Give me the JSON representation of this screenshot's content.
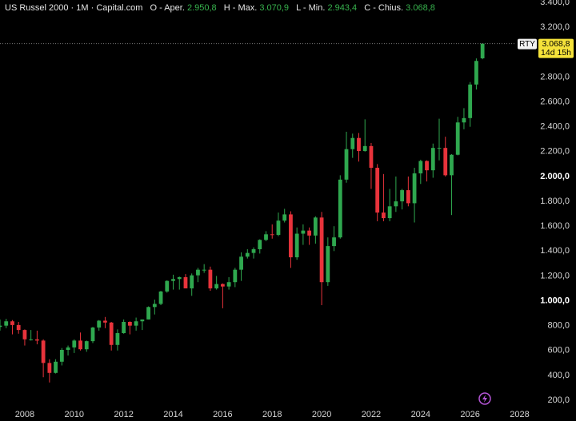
{
  "header": {
    "title": "US Russel 2000 · 1M · Capital.com",
    "open_label": "O - Aper.",
    "open": "2.950,8",
    "high_label": "H - Max.",
    "high": "3.070,9",
    "low_label": "L - Min.",
    "low": "2.943,4",
    "close_label": "C - Chius.",
    "close": "3.068,8"
  },
  "badge": {
    "symbol": "RTY",
    "countdown": "14d 15h"
  },
  "chart_data": {
    "type": "candlestick",
    "x": [
      2007.0,
      2007.25,
      2007.5,
      2007.75,
      2008.0,
      2008.25,
      2008.5,
      2008.75,
      2009.0,
      2009.25,
      2009.5,
      2009.75,
      2010.0,
      2010.25,
      2010.5,
      2010.75,
      2011.0,
      2011.25,
      2011.5,
      2011.75,
      2012.0,
      2012.25,
      2012.5,
      2012.75,
      2013.0,
      2013.25,
      2013.5,
      2013.75,
      2014.0,
      2014.25,
      2014.5,
      2014.75,
      2015.0,
      2015.25,
      2015.5,
      2015.75,
      2016.0,
      2016.25,
      2016.5,
      2016.75,
      2017.0,
      2017.25,
      2017.5,
      2017.75,
      2018.0,
      2018.25,
      2018.5,
      2018.75,
      2019.0,
      2019.25,
      2019.5,
      2019.75,
      2020.0,
      2020.25,
      2020.5,
      2020.75,
      2021.0,
      2021.25,
      2021.5,
      2021.75,
      2022.0,
      2022.25,
      2022.5,
      2022.75,
      2023.0,
      2023.25,
      2023.5,
      2023.75,
      2024.0,
      2024.25,
      2024.5,
      2024.75,
      2025.0,
      2025.25,
      2025.5,
      2025.75,
      2026.0,
      2026.25,
      2026.5
    ],
    "open": [
      790,
      800,
      835,
      805,
      765,
      690,
      690,
      680,
      500,
      420,
      510,
      605,
      625,
      680,
      610,
      675,
      785,
      840,
      825,
      645,
      740,
      830,
      800,
      835,
      850,
      950,
      975,
      1075,
      1160,
      1175,
      1190,
      1100,
      1205,
      1250,
      1250,
      1100,
      1135,
      1115,
      1150,
      1250,
      1355,
      1385,
      1415,
      1490,
      1535,
      1530,
      1645,
      1695,
      1350,
      1540,
      1565,
      1525,
      1670,
      1150,
      1440,
      1510,
      1975,
      2220,
      2310,
      2205,
      2245,
      2070,
      1710,
      1665,
      1760,
      1800,
      1890,
      1785,
      2025,
      2125,
      2050,
      2230,
      2230,
      2010,
      2175,
      2435,
      2470,
      2740,
      2950.8
    ],
    "high": [
      850,
      855,
      845,
      830,
      770,
      765,
      760,
      690,
      530,
      530,
      620,
      640,
      690,
      745,
      680,
      790,
      845,
      870,
      830,
      770,
      850,
      835,
      865,
      850,
      955,
      1010,
      1080,
      1165,
      1210,
      1195,
      1215,
      1220,
      1265,
      1295,
      1275,
      1200,
      1140,
      1190,
      1265,
      1390,
      1415,
      1430,
      1495,
      1560,
      1615,
      1710,
      1740,
      1720,
      1590,
      1615,
      1590,
      1680,
      1715,
      1510,
      1600,
      2010,
      2360,
      2345,
      2350,
      2460,
      2270,
      2100,
      2020,
      1900,
      2000,
      1900,
      2000,
      2070,
      2135,
      2130,
      2265,
      2465,
      2320,
      2180,
      2480,
      2550,
      2760,
      2950,
      3070.9
    ],
    "low": [
      760,
      780,
      730,
      735,
      640,
      680,
      650,
      385,
      343,
      415,
      480,
      560,
      580,
      600,
      590,
      660,
      760,
      780,
      600,
      600,
      735,
      730,
      760,
      765,
      850,
      890,
      965,
      1065,
      1090,
      1090,
      1100,
      1040,
      1150,
      1225,
      1080,
      1090,
      940,
      1090,
      1110,
      1160,
      1340,
      1340,
      1380,
      1480,
      1500,
      1520,
      1630,
      1265,
      1330,
      1450,
      1450,
      1460,
      965,
      1120,
      1400,
      1500,
      1950,
      2150,
      2120,
      2200,
      1900,
      1640,
      1640,
      1640,
      1715,
      1735,
      1760,
      1630,
      1940,
      1960,
      1990,
      2130,
      2000,
      1690,
      2170,
      2380,
      2400,
      2700,
      2943.4
    ],
    "close": [
      800,
      835,
      805,
      765,
      690,
      690,
      680,
      500,
      420,
      510,
      605,
      625,
      680,
      610,
      675,
      785,
      840,
      825,
      645,
      740,
      830,
      800,
      835,
      850,
      950,
      975,
      1075,
      1160,
      1175,
      1190,
      1100,
      1205,
      1250,
      1250,
      1100,
      1135,
      1115,
      1150,
      1250,
      1355,
      1385,
      1415,
      1490,
      1535,
      1530,
      1645,
      1695,
      1350,
      1540,
      1565,
      1525,
      1670,
      1150,
      1440,
      1510,
      1975,
      2220,
      2310,
      2205,
      2245,
      2070,
      1710,
      1665,
      1760,
      1800,
      1890,
      1785,
      2025,
      2125,
      2050,
      2230,
      2230,
      2010,
      2175,
      2435,
      2470,
      2740,
      2930,
      3068.8
    ],
    "up_color": "#2fa84f",
    "down_color": "#e8333b",
    "xlim": [
      2007,
      2028.5
    ],
    "ylim": [
      33,
      3420
    ],
    "xticks": [
      2008,
      2010,
      2012,
      2014,
      2016,
      2018,
      2020,
      2022,
      2024,
      2026,
      2028
    ],
    "yticks": [
      {
        "value": 200,
        "label": "200,0"
      },
      {
        "value": 400,
        "label": "400,0"
      },
      {
        "value": 600,
        "label": "600,0"
      },
      {
        "value": 800,
        "label": "800,0"
      },
      {
        "value": 1000,
        "label": "1.000,0"
      },
      {
        "value": 1200,
        "label": "1.200,0"
      },
      {
        "value": 1400,
        "label": "1.400,0"
      },
      {
        "value": 1600,
        "label": "1.600,0"
      },
      {
        "value": 1800,
        "label": "1.800,0"
      },
      {
        "value": 2000,
        "label": "2.000,0"
      },
      {
        "value": 2200,
        "label": "2.200,0"
      },
      {
        "value": 2400,
        "label": "2.400,0"
      },
      {
        "value": 2600,
        "label": "2.600,0"
      },
      {
        "value": 2800,
        "label": "2.800,0"
      },
      {
        "value": 3000,
        "label": "3.000,0"
      },
      {
        "value": 3200,
        "label": "3.200,0"
      },
      {
        "value": 3400,
        "label": "3.400,0"
      }
    ],
    "bold_yticks": [
      1000,
      2000
    ]
  }
}
